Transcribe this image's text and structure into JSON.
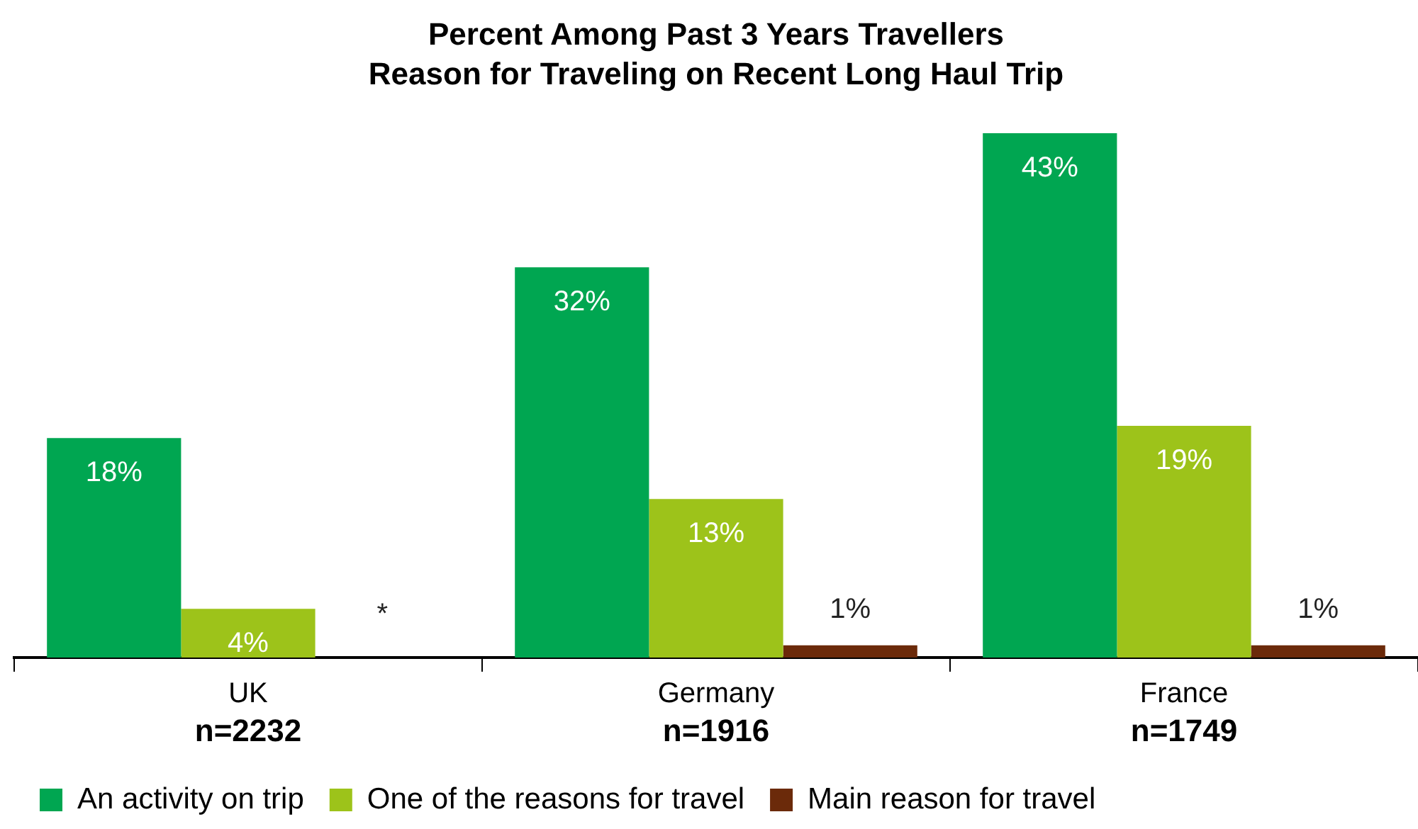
{
  "chart_data": {
    "type": "bar",
    "title": "Percent Among Past 3 Years Travellers",
    "subtitle": "Reason for Traveling on Recent Long Haul Trip",
    "categories": [
      "UK",
      "Germany",
      "France"
    ],
    "series": [
      {
        "name": "An activity on trip",
        "color": "#00a651",
        "values": [
          18,
          32,
          43
        ],
        "value_labels": [
          "18%",
          "32%",
          "43%"
        ]
      },
      {
        "name": "One of the reasons for travel",
        "color": "#9dc31a",
        "values": [
          4,
          13,
          19
        ],
        "value_labels": [
          "4%",
          "13%",
          "19%"
        ]
      },
      {
        "name": "Main reason for travel",
        "color": "#6b2a0a",
        "values": [
          null,
          1,
          1
        ],
        "value_labels": [
          "*",
          "1%",
          "1%"
        ]
      }
    ],
    "annotations": [
      "n=2232",
      "n=1916",
      "n=1749"
    ],
    "legend": "bottom",
    "grid": false,
    "tick_labels": "x"
  }
}
